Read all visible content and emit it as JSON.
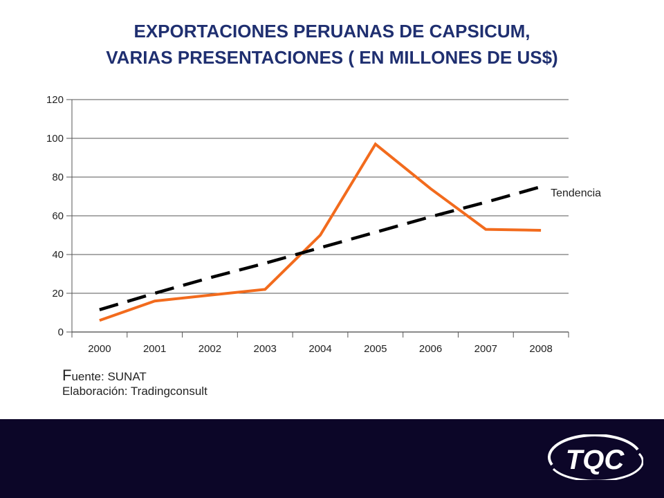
{
  "title_line1": "EXPORTACIONES  PERUANAS  DE CAPSICUM,",
  "title_line2": "VARIAS PRESENTACIONES  ( EN MILLONES DE US$)",
  "source_line1_first": "F",
  "source_line1_rest": "uente: SUNAT",
  "source_line2": "Elaboración: Tradingconsult",
  "logo_text": "TQC",
  "colors": {
    "title": "#1f2f70",
    "series": "#f26b1d",
    "trend": "#000000",
    "footer": "#0c0628"
  },
  "chart_data": {
    "type": "line",
    "title": "EXPORTACIONES PERUANAS DE CAPSICUM, VARIAS PRESENTACIONES ( EN MILLONES DE US$)",
    "categories": [
      "2000",
      "2001",
      "2002",
      "2003",
      "2004",
      "2005",
      "2006",
      "2007",
      "2008"
    ],
    "series": [
      {
        "values": [
          6,
          16,
          19,
          22,
          50,
          97,
          74,
          53,
          52.5
        ],
        "style": "solid"
      },
      {
        "name": "Tendencia",
        "values": [
          11.5,
          20,
          28,
          35.5,
          43.5,
          51.5,
          59.5,
          67,
          75
        ],
        "style": "dashed"
      }
    ],
    "ylim": [
      0,
      120
    ],
    "yticks": [
      0,
      20,
      40,
      60,
      80,
      100,
      120
    ],
    "grid": true,
    "xlabel": "",
    "ylabel": ""
  }
}
